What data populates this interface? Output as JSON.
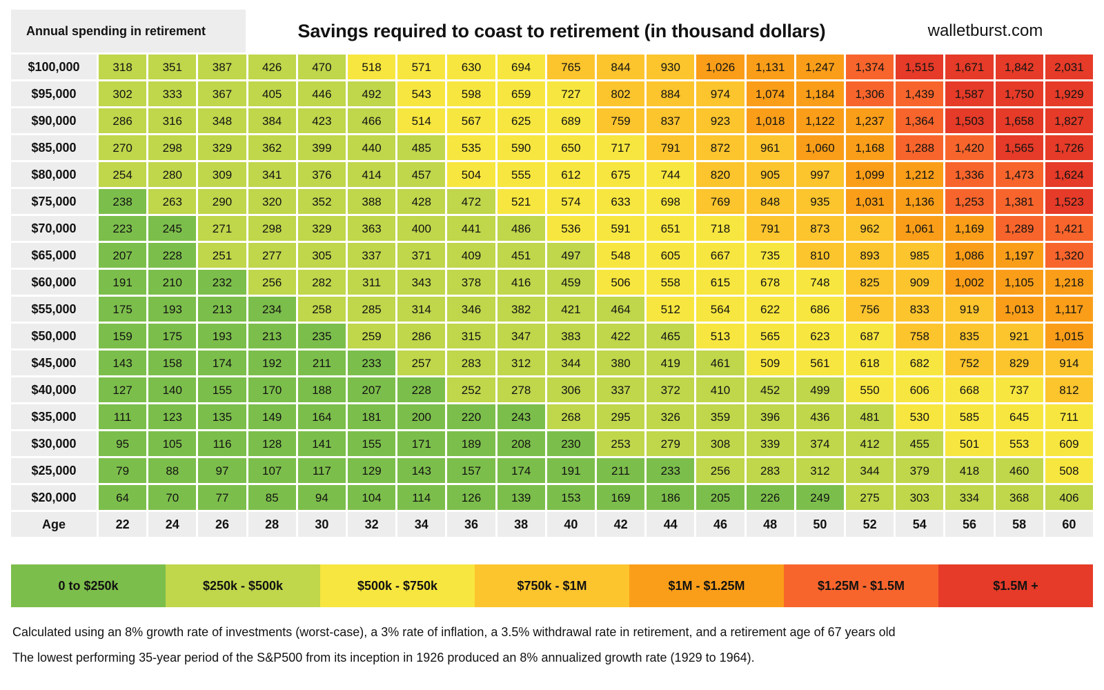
{
  "header": {
    "row_label_title": "Annual spending in retirement",
    "title": "Savings required to coast to retirement (in thousand dollars)",
    "site": "walletburst.com"
  },
  "chart_data": {
    "type": "heatmap",
    "title": "Savings required to coast to retirement (in thousand dollars)",
    "xlabel": "Age",
    "ylabel": "Annual spending in retirement",
    "x_axis_label": "Age",
    "ages": [
      22,
      24,
      26,
      28,
      30,
      32,
      34,
      36,
      38,
      40,
      42,
      44,
      46,
      48,
      50,
      52,
      54,
      56,
      58,
      60
    ],
    "rows": [
      {
        "spending": "$100,000",
        "values": [
          318,
          351,
          387,
          426,
          470,
          518,
          571,
          630,
          694,
          765,
          844,
          930,
          1026,
          1131,
          1247,
          1374,
          1515,
          1671,
          1842,
          2031
        ]
      },
      {
        "spending": "$95,000",
        "values": [
          302,
          333,
          367,
          405,
          446,
          492,
          543,
          598,
          659,
          727,
          802,
          884,
          974,
          1074,
          1184,
          1306,
          1439,
          1587,
          1750,
          1929
        ]
      },
      {
        "spending": "$90,000",
        "values": [
          286,
          316,
          348,
          384,
          423,
          466,
          514,
          567,
          625,
          689,
          759,
          837,
          923,
          1018,
          1122,
          1237,
          1364,
          1503,
          1658,
          1827
        ]
      },
      {
        "spending": "$85,000",
        "values": [
          270,
          298,
          329,
          362,
          399,
          440,
          485,
          535,
          590,
          650,
          717,
          791,
          872,
          961,
          1060,
          1168,
          1288,
          1420,
          1565,
          1726
        ]
      },
      {
        "spending": "$80,000",
        "values": [
          254,
          280,
          309,
          341,
          376,
          414,
          457,
          504,
          555,
          612,
          675,
          744,
          820,
          905,
          997,
          1099,
          1212,
          1336,
          1473,
          1624
        ]
      },
      {
        "spending": "$75,000",
        "values": [
          238,
          263,
          290,
          320,
          352,
          388,
          428,
          472,
          521,
          574,
          633,
          698,
          769,
          848,
          935,
          1031,
          1136,
          1253,
          1381,
          1523
        ]
      },
      {
        "spending": "$70,000",
        "values": [
          223,
          245,
          271,
          298,
          329,
          363,
          400,
          441,
          486,
          536,
          591,
          651,
          718,
          791,
          873,
          962,
          1061,
          1169,
          1289,
          1421
        ]
      },
      {
        "spending": "$65,000",
        "values": [
          207,
          228,
          251,
          277,
          305,
          337,
          371,
          409,
          451,
          497,
          548,
          605,
          667,
          735,
          810,
          893,
          985,
          1086,
          1197,
          1320
        ]
      },
      {
        "spending": "$60,000",
        "values": [
          191,
          210,
          232,
          256,
          282,
          311,
          343,
          378,
          416,
          459,
          506,
          558,
          615,
          678,
          748,
          825,
          909,
          1002,
          1105,
          1218
        ]
      },
      {
        "spending": "$55,000",
        "values": [
          175,
          193,
          213,
          234,
          258,
          285,
          314,
          346,
          382,
          421,
          464,
          512,
          564,
          622,
          686,
          756,
          833,
          919,
          1013,
          1117
        ]
      },
      {
        "spending": "$50,000",
        "values": [
          159,
          175,
          193,
          213,
          235,
          259,
          286,
          315,
          347,
          383,
          422,
          465,
          513,
          565,
          623,
          687,
          758,
          835,
          921,
          1015
        ]
      },
      {
        "spending": "$45,000",
        "values": [
          143,
          158,
          174,
          192,
          211,
          233,
          257,
          283,
          312,
          344,
          380,
          419,
          461,
          509,
          561,
          618,
          682,
          752,
          829,
          914
        ]
      },
      {
        "spending": "$40,000",
        "values": [
          127,
          140,
          155,
          170,
          188,
          207,
          228,
          252,
          278,
          306,
          337,
          372,
          410,
          452,
          499,
          550,
          606,
          668,
          737,
          812
        ]
      },
      {
        "spending": "$35,000",
        "values": [
          111,
          123,
          135,
          149,
          164,
          181,
          200,
          220,
          243,
          268,
          295,
          326,
          359,
          396,
          436,
          481,
          530,
          585,
          645,
          711
        ]
      },
      {
        "spending": "$30,000",
        "values": [
          95,
          105,
          116,
          128,
          141,
          155,
          171,
          189,
          208,
          230,
          253,
          279,
          308,
          339,
          374,
          412,
          455,
          501,
          553,
          609
        ]
      },
      {
        "spending": "$25,000",
        "values": [
          79,
          88,
          97,
          107,
          117,
          129,
          143,
          157,
          174,
          191,
          211,
          233,
          256,
          283,
          312,
          344,
          379,
          418,
          460,
          508
        ]
      },
      {
        "spending": "$20,000",
        "values": [
          64,
          70,
          77,
          85,
          94,
          104,
          114,
          126,
          139,
          153,
          169,
          186,
          205,
          226,
          249,
          275,
          303,
          334,
          368,
          406
        ]
      }
    ],
    "color_bands": [
      {
        "label": "0 to $250k",
        "max": 250,
        "color": "#7cbe4b"
      },
      {
        "label": "$250k - $500k",
        "max": 500,
        "color": "#c0d64b"
      },
      {
        "label": "$500k - $750k",
        "max": 750,
        "color": "#f7e63f"
      },
      {
        "label": "$750k - $1M",
        "max": 1000,
        "color": "#fcc42d"
      },
      {
        "label": "$1M - $1.25M",
        "max": 1250,
        "color": "#fa9e19"
      },
      {
        "label": "$1.25M - $1.5M",
        "max": 1500,
        "color": "#f8652c"
      },
      {
        "label": "$1.5M +",
        "max": null,
        "color": "#e53b28"
      }
    ],
    "legend_position": "bottom",
    "grid": false
  },
  "footer": {
    "line1": "Calculated using an 8% growth rate of investments (worst-case), a 3% rate of inflation, a 3.5% withdrawal rate in retirement, and a retirement age of 67 years old",
    "line2": "The lowest performing 35-year period of the S&P500 from its inception in 1926 produced an 8% annualized growth rate (1929 to 1964)."
  }
}
